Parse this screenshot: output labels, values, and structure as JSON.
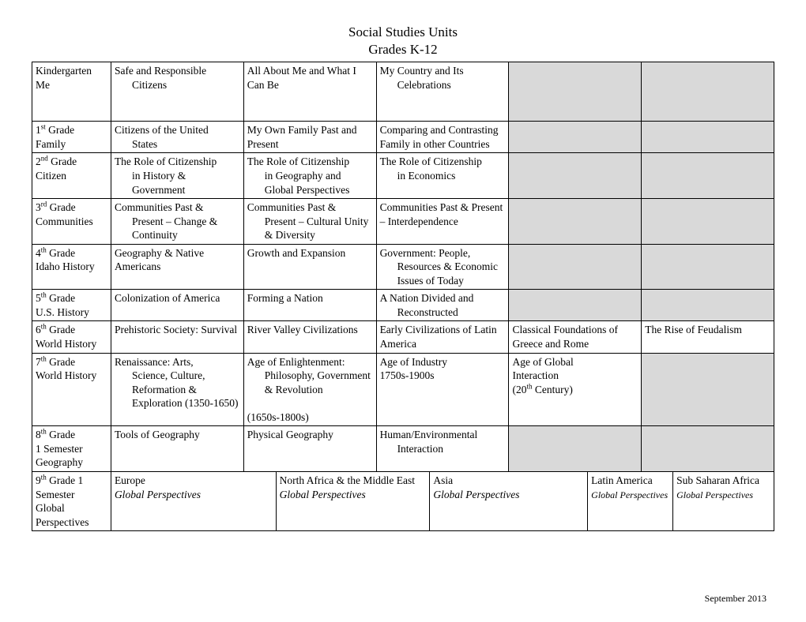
{
  "title_line1": "Social Studies Units",
  "title_line2": "Grades K-12",
  "footer": "September 2013",
  "colors": {
    "shaded_bg": "#d9d9d9",
    "page_bg": "#ffffff",
    "text": "#000000"
  },
  "rows": [
    {
      "grade_main": "Kindergarten",
      "grade_sub": "Me",
      "bottom_pad": true,
      "cells": [
        {
          "text": "Safe and Responsible Citizens",
          "indent_after": "Safe and Responsible "
        },
        {
          "text": "All About Me and What I Can Be"
        },
        {
          "text": "My Country and Its Celebrations",
          "indent_after": "My Country and Its"
        },
        {
          "shaded": true
        },
        {
          "shaded": true
        }
      ]
    },
    {
      "grade_ord": "1",
      "grade_ord_suffix": "st",
      "grade_after": " Grade",
      "grade_sub": "Family",
      "cells": [
        {
          "text": "Citizens of the United States",
          "indent_after": "Citizens of the United "
        },
        {
          "text": "My Own Family Past and Present"
        },
        {
          "text": "Comparing and Contrasting Family in other Countries"
        },
        {
          "shaded": true
        },
        {
          "shaded": true
        }
      ]
    },
    {
      "grade_ord": "2",
      "grade_ord_suffix": "nd",
      "grade_after": " Grade",
      "grade_sub": "Citizen",
      "cells": [
        {
          "text": "The Role of Citizenship in History & Government",
          "indent_after": "The Role of Citizenship "
        },
        {
          "text": "The Role of Citizenship in Geography and Global Perspectives",
          "indent_after": "The Role of Citizenship "
        },
        {
          "text": "The Role of Citizenship in Economics",
          "indent_after": "The Role of Citizenship "
        },
        {
          "shaded": true
        },
        {
          "shaded": true
        }
      ]
    },
    {
      "grade_ord": "3",
      "grade_ord_suffix": "rd",
      "grade_after": " Grade",
      "grade_sub": "Communities",
      "cells": [
        {
          "text": "Communities Past & Present – Change & Continuity",
          "indent_after": "Communities Past & "
        },
        {
          "text": "Communities Past & Present – Cultural Unity & Diversity",
          "indent_after": "Communities Past & "
        },
        {
          "text": "Communities Past & Present – Interdependence"
        },
        {
          "shaded": true
        },
        {
          "shaded": true
        }
      ]
    },
    {
      "grade_ord": "4",
      "grade_ord_suffix": "th",
      "grade_after": " Grade",
      "grade_sub": "Idaho History",
      "cells": [
        {
          "text": "Geography & Native Americans"
        },
        {
          "text": "Growth and Expansion"
        },
        {
          "text": "Government: People, Resources & Economic Issues of Today",
          "indent_after": "Government: People, "
        },
        {
          "shaded": true
        },
        {
          "shaded": true
        }
      ]
    },
    {
      "grade_ord": "5",
      "grade_ord_suffix": "th",
      "grade_after": " Grade",
      "grade_sub": "U.S. History",
      "cells": [
        {
          "text": "Colonization of America"
        },
        {
          "text": "Forming a Nation"
        },
        {
          "text": "A Nation Divided and Reconstructed",
          "indent_after": "A Nation Divided and "
        },
        {
          "shaded": true
        },
        {
          "shaded": true
        }
      ]
    },
    {
      "grade_ord": "6",
      "grade_ord_suffix": "th",
      "grade_after": " Grade",
      "grade_sub": "World History",
      "cells": [
        {
          "text": "Prehistoric Society: Survival"
        },
        {
          "text": "River Valley Civilizations"
        },
        {
          "text": "Early Civilizations of Latin America"
        },
        {
          "text": "Classical Foundations of Greece and Rome"
        },
        {
          "text": "The Rise of Feudalism"
        }
      ]
    },
    {
      "grade_ord": "7",
      "grade_ord_suffix": "th",
      "grade_after": " Grade",
      "grade_sub": "World History",
      "cells": [
        {
          "text": "Renaissance: Arts, Science, Culture, Reformation & Exploration (1350-1650)",
          "indent_after": "Renaissance: Arts, "
        },
        {
          "text": "Age of Enlightenment: Philosophy, Government & Revolution",
          "indent_after": "Age of Enlightenment: ",
          "extra_line": "(1650s-1800s)"
        },
        {
          "text_lines": [
            "Age of Industry",
            "1750s-1900s"
          ]
        },
        {
          "text_lines": [
            "Age of Global",
            "Interaction"
          ],
          "extra_ord_line": {
            "prefix": "(20",
            "suffix": "th",
            "after": " Century)"
          }
        },
        {
          "shaded": true
        }
      ]
    },
    {
      "grade_ord": "8",
      "grade_ord_suffix": "th",
      "grade_after": " Grade",
      "grade_sub_lines": [
        "1 Semester",
        "Geography"
      ],
      "cells": [
        {
          "text": "Tools of Geography"
        },
        {
          "text": "Physical Geography"
        },
        {
          "text": "Human/Environmental Interaction",
          "indent_after": "Human/Environmental "
        },
        {
          "shaded": true
        },
        {
          "shaded": true
        }
      ]
    }
  ],
  "row9": {
    "grade_ord": "9",
    "grade_ord_suffix": "th",
    "grade_after": "  Grade     1",
    "grade_sub_lines": [
      "Semester",
      "Global",
      "Perspectives"
    ],
    "cells": [
      {
        "main": "Europe",
        "sub_italic": "Global Perspectives"
      },
      {
        "main": "North Africa & the Middle East",
        "sub_italic": "Global Perspectives"
      },
      {
        "main": "Asia",
        "sub_italic": "Global Perspectives"
      },
      {
        "main": "Latin America",
        "sub_italic_small": "Global Perspectives"
      },
      {
        "main": "Sub Saharan Africa",
        "sub_italic_small": "Global Perspectives"
      }
    ]
  }
}
